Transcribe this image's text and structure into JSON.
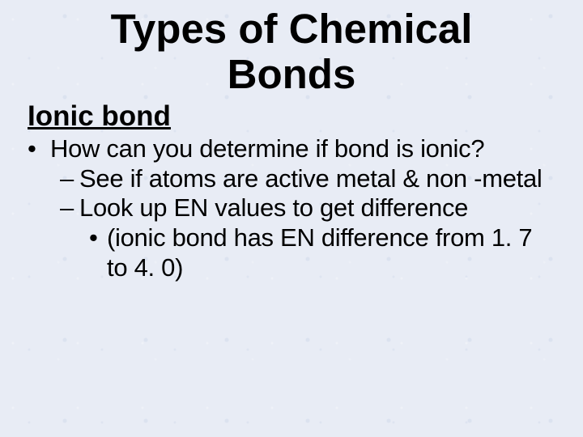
{
  "title": "Types of Chemical Bonds",
  "subtitle": "Ionic bond",
  "bullets": {
    "level1": {
      "marker": "•",
      "text": "How can you determine if bond is ionic?"
    },
    "level2a": {
      "marker": "–",
      "text": "See if atoms are active metal & non -metal"
    },
    "level2b": {
      "marker": "–",
      "text": "Look up EN values to get difference"
    },
    "level3": {
      "marker": "•",
      "text": "(ionic bond has EN difference from 1. 7 to 4. 0)"
    }
  },
  "colors": {
    "background": "#e8ecf5",
    "text": "#000000"
  },
  "typography": {
    "title_fontsize": 51,
    "subtitle_fontsize": 35,
    "body_fontsize": 31,
    "font_family": "Arial"
  }
}
